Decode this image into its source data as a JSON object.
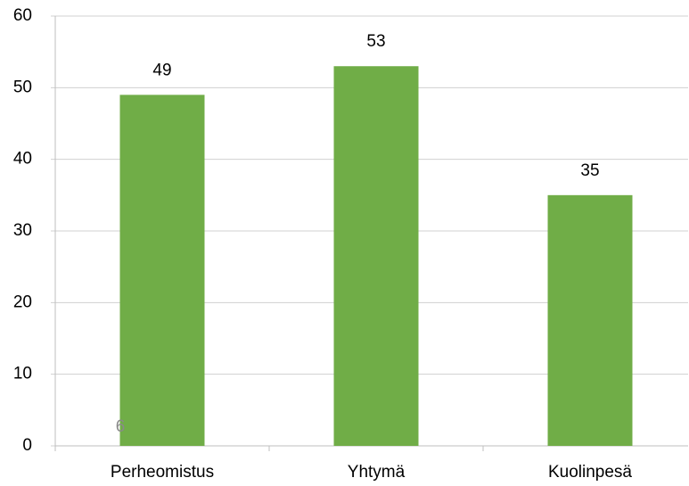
{
  "chart_data": {
    "type": "bar",
    "categories": [
      "Perheomistus",
      "Yhtymä",
      "Kuolinpesä"
    ],
    "values": [
      49,
      53,
      35
    ],
    "color": "#70ad47",
    "ylim": [
      0,
      60
    ],
    "yticks": [
      0,
      10,
      20,
      30,
      40,
      50,
      60
    ],
    "grid": true,
    "annotation": "6"
  }
}
